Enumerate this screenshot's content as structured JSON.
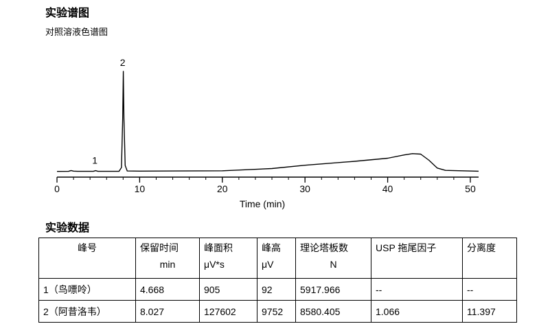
{
  "page": {
    "title": "实验谱图",
    "subtitle": "对照溶液色谱图",
    "data_section_title": "实验数据"
  },
  "chart_data": {
    "type": "line",
    "xlabel": "Time (min)",
    "ylabel": "",
    "xlim": [
      0,
      51
    ],
    "x_ticks": [
      0,
      10,
      20,
      30,
      40,
      50
    ],
    "peak_labels": [
      {
        "label": "1",
        "x": 4.668,
        "y": 92
      },
      {
        "label": "2",
        "x": 8.027,
        "y": 9752
      }
    ],
    "series": [
      {
        "x": [
          0,
          1.4,
          1.7,
          2.0,
          2.5,
          4.4,
          4.668,
          4.95,
          7.5,
          7.8,
          7.95,
          8.027,
          8.1,
          8.25,
          8.5,
          10,
          20,
          26,
          30,
          36,
          40,
          42,
          43,
          44,
          45,
          46,
          47,
          51
        ],
        "y": [
          20,
          25,
          110,
          45,
          30,
          30,
          92,
          30,
          30,
          400,
          5200,
          9752,
          5200,
          600,
          60,
          50,
          80,
          300,
          620,
          1000,
          1300,
          1620,
          1750,
          1700,
          1100,
          350,
          120,
          40
        ]
      }
    ],
    "ylim": [
      -300,
      10500
    ]
  },
  "table": {
    "headers": [
      {
        "line1": "峰号",
        "line2": ""
      },
      {
        "line1": "保留时间",
        "line2": "min"
      },
      {
        "line1": "峰面积",
        "line2": "μV*s"
      },
      {
        "line1": "峰高",
        "line2": "μV"
      },
      {
        "line1": "理论塔板数",
        "line2": "N"
      },
      {
        "line1": "USP 拖尾因子",
        "line2": ""
      },
      {
        "line1": "分离度",
        "line2": ""
      }
    ],
    "rows": [
      [
        "1（鸟嘌呤）",
        "4.668",
        "905",
        "92",
        "5917.966",
        "--",
        "--"
      ],
      [
        "2（阿昔洛韦）",
        "8.027",
        "127602",
        "9752",
        "8580.405",
        "1.066",
        "11.397"
      ]
    ]
  }
}
